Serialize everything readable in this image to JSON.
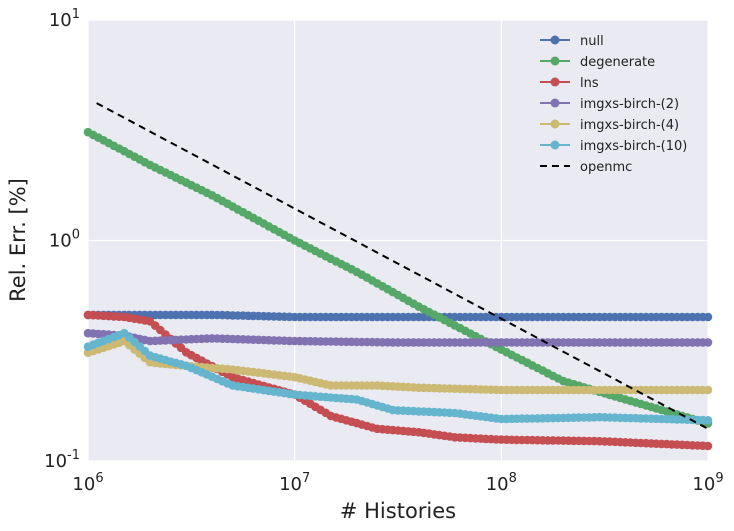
{
  "chart_data": {
    "type": "line",
    "xlabel": "# Histories",
    "ylabel": "Rel. Err. [%]",
    "xscale": "log",
    "yscale": "log",
    "xlim": [
      1000000,
      1000000000
    ],
    "ylim": [
      0.1,
      10
    ],
    "x_tick_labels": [
      {
        "base": "10",
        "exp": "6"
      },
      {
        "base": "10",
        "exp": "7"
      },
      {
        "base": "10",
        "exp": "8"
      },
      {
        "base": "10",
        "exp": "9"
      }
    ],
    "y_tick_labels": [
      {
        "base": "10",
        "exp": "-1"
      },
      {
        "base": "10",
        "exp": "0"
      },
      {
        "base": "10",
        "exp": "1"
      }
    ],
    "grid": true,
    "legend_position": "top-right",
    "series": [
      {
        "name": "null",
        "color": "#4c72b0",
        "marker": "circle",
        "points": [
          [
            1000000,
            0.46
          ],
          [
            2000000,
            0.46
          ],
          [
            4000000,
            0.46
          ],
          [
            10000000,
            0.45
          ],
          [
            30000000,
            0.45
          ],
          [
            100000000,
            0.45
          ],
          [
            300000000,
            0.45
          ],
          [
            1000000000,
            0.45
          ]
        ]
      },
      {
        "name": "degenerate",
        "color": "#55a868",
        "marker": "circle",
        "points": [
          [
            1000000,
            3.1
          ],
          [
            2000000,
            2.2
          ],
          [
            4000000,
            1.6
          ],
          [
            10000000,
            1.0
          ],
          [
            20000000,
            0.72
          ],
          [
            40000000,
            0.5
          ],
          [
            100000000,
            0.32
          ],
          [
            200000000,
            0.23
          ],
          [
            400000000,
            0.19
          ],
          [
            1000000000,
            0.148
          ]
        ]
      },
      {
        "name": "lns",
        "color": "#c44e52",
        "marker": "circle",
        "points": [
          [
            1000000,
            0.46
          ],
          [
            1500000,
            0.45
          ],
          [
            2000000,
            0.43
          ],
          [
            3000000,
            0.31
          ],
          [
            5000000,
            0.24
          ],
          [
            10000000,
            0.2
          ],
          [
            15000000,
            0.16
          ],
          [
            25000000,
            0.14
          ],
          [
            40000000,
            0.135
          ],
          [
            60000000,
            0.128
          ],
          [
            100000000,
            0.125
          ],
          [
            300000000,
            0.123
          ],
          [
            1000000000,
            0.117
          ]
        ]
      },
      {
        "name": "imgxs-birch-(2)",
        "color": "#8172b2",
        "marker": "circle",
        "points": [
          [
            1000000,
            0.38
          ],
          [
            1500000,
            0.37
          ],
          [
            2000000,
            0.35
          ],
          [
            4000000,
            0.36
          ],
          [
            10000000,
            0.35
          ],
          [
            30000000,
            0.345
          ],
          [
            100000000,
            0.345
          ],
          [
            1000000000,
            0.345
          ]
        ]
      },
      {
        "name": "imgxs-birch-(4)",
        "color": "#ccb974",
        "marker": "circle",
        "points": [
          [
            1000000,
            0.31
          ],
          [
            1500000,
            0.35
          ],
          [
            2000000,
            0.28
          ],
          [
            3000000,
            0.27
          ],
          [
            5000000,
            0.26
          ],
          [
            10000000,
            0.24
          ],
          [
            15000000,
            0.22
          ],
          [
            25000000,
            0.22
          ],
          [
            40000000,
            0.215
          ],
          [
            100000000,
            0.21
          ],
          [
            1000000000,
            0.21
          ]
        ]
      },
      {
        "name": "imgxs-birch-(10)",
        "color": "#64b5cd",
        "marker": "circle",
        "points": [
          [
            1000000,
            0.33
          ],
          [
            1500000,
            0.38
          ],
          [
            2000000,
            0.3
          ],
          [
            3000000,
            0.27
          ],
          [
            5000000,
            0.22
          ],
          [
            10000000,
            0.2
          ],
          [
            20000000,
            0.19
          ],
          [
            30000000,
            0.17
          ],
          [
            60000000,
            0.165
          ],
          [
            100000000,
            0.155
          ],
          [
            300000000,
            0.158
          ],
          [
            1000000000,
            0.153
          ]
        ]
      },
      {
        "name": "openmc",
        "color": "#000000",
        "marker": "none",
        "dashed": true,
        "points": [
          [
            1100000,
            4.2
          ],
          [
            1000000000,
            0.14
          ]
        ]
      }
    ]
  }
}
